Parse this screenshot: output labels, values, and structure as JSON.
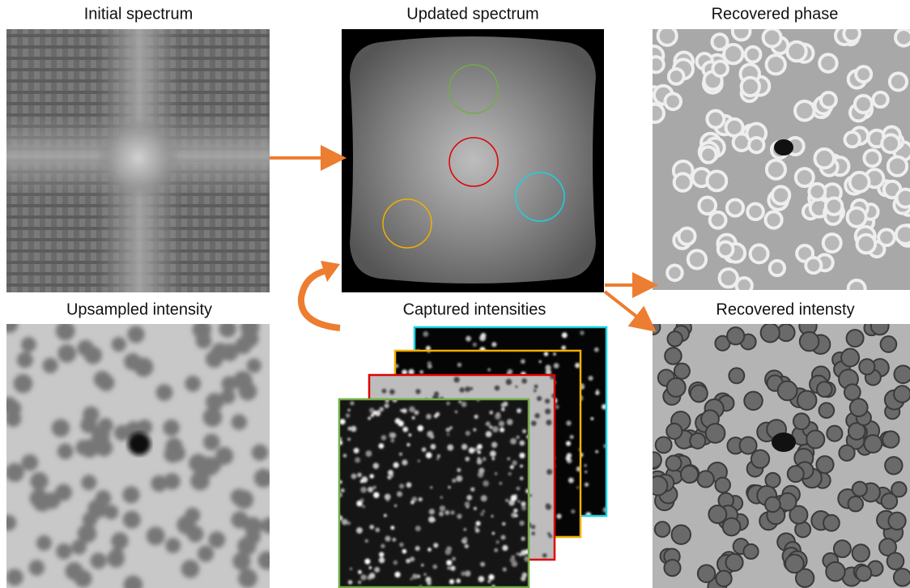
{
  "panels": [
    {
      "title": "Initial spectrum"
    },
    {
      "title": "Updated spectrum"
    },
    {
      "title": "Recovered phase"
    },
    {
      "title": "Upsampled intensity"
    },
    {
      "title": "Captured intensities"
    },
    {
      "title": "Recovered intensty"
    }
  ]
}
